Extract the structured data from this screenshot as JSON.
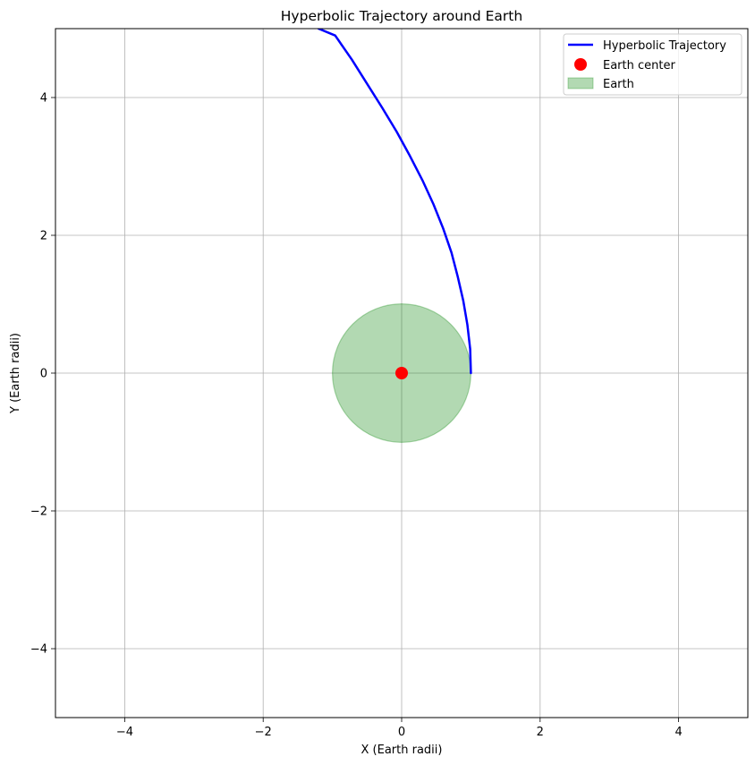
{
  "chart_data": {
    "type": "line",
    "title": "Hyperbolic Trajectory around Earth",
    "xlabel": "X (Earth radii)",
    "ylabel": "Y (Earth radii)",
    "xlim": [
      -5,
      5
    ],
    "ylim": [
      -5,
      5
    ],
    "grid": true,
    "legend_position": "top-right",
    "x_ticks": [
      -4,
      -2,
      0,
      2,
      4
    ],
    "y_ticks": [
      -4,
      -2,
      0,
      2,
      4
    ],
    "x_tick_labels": [
      "−4",
      "−2",
      "0",
      "2",
      "4"
    ],
    "y_tick_labels": [
      "−4",
      "−2",
      "0",
      "2",
      "4"
    ],
    "series": [
      {
        "name": "Hyperbolic Trajectory",
        "kind": "line",
        "color": "#0000ff",
        "x": [
          1.0,
          0.99,
          0.95,
          0.89,
          0.81,
          0.72,
          0.6,
          0.46,
          0.3,
          0.12,
          -0.07,
          -0.28,
          -0.5,
          -0.72,
          -0.96,
          -1.2
        ],
        "y": [
          0.0,
          0.35,
          0.7,
          1.05,
          1.4,
          1.75,
          2.1,
          2.45,
          2.8,
          3.15,
          3.5,
          3.85,
          4.2,
          4.55,
          4.9,
          5.0
        ]
      },
      {
        "name": "Earth center",
        "kind": "point",
        "color": "#ff0000",
        "x": [
          0
        ],
        "y": [
          0
        ]
      },
      {
        "name": "Earth",
        "kind": "circle",
        "color": "#008000",
        "center": [
          0,
          0
        ],
        "radius": 1
      }
    ]
  }
}
